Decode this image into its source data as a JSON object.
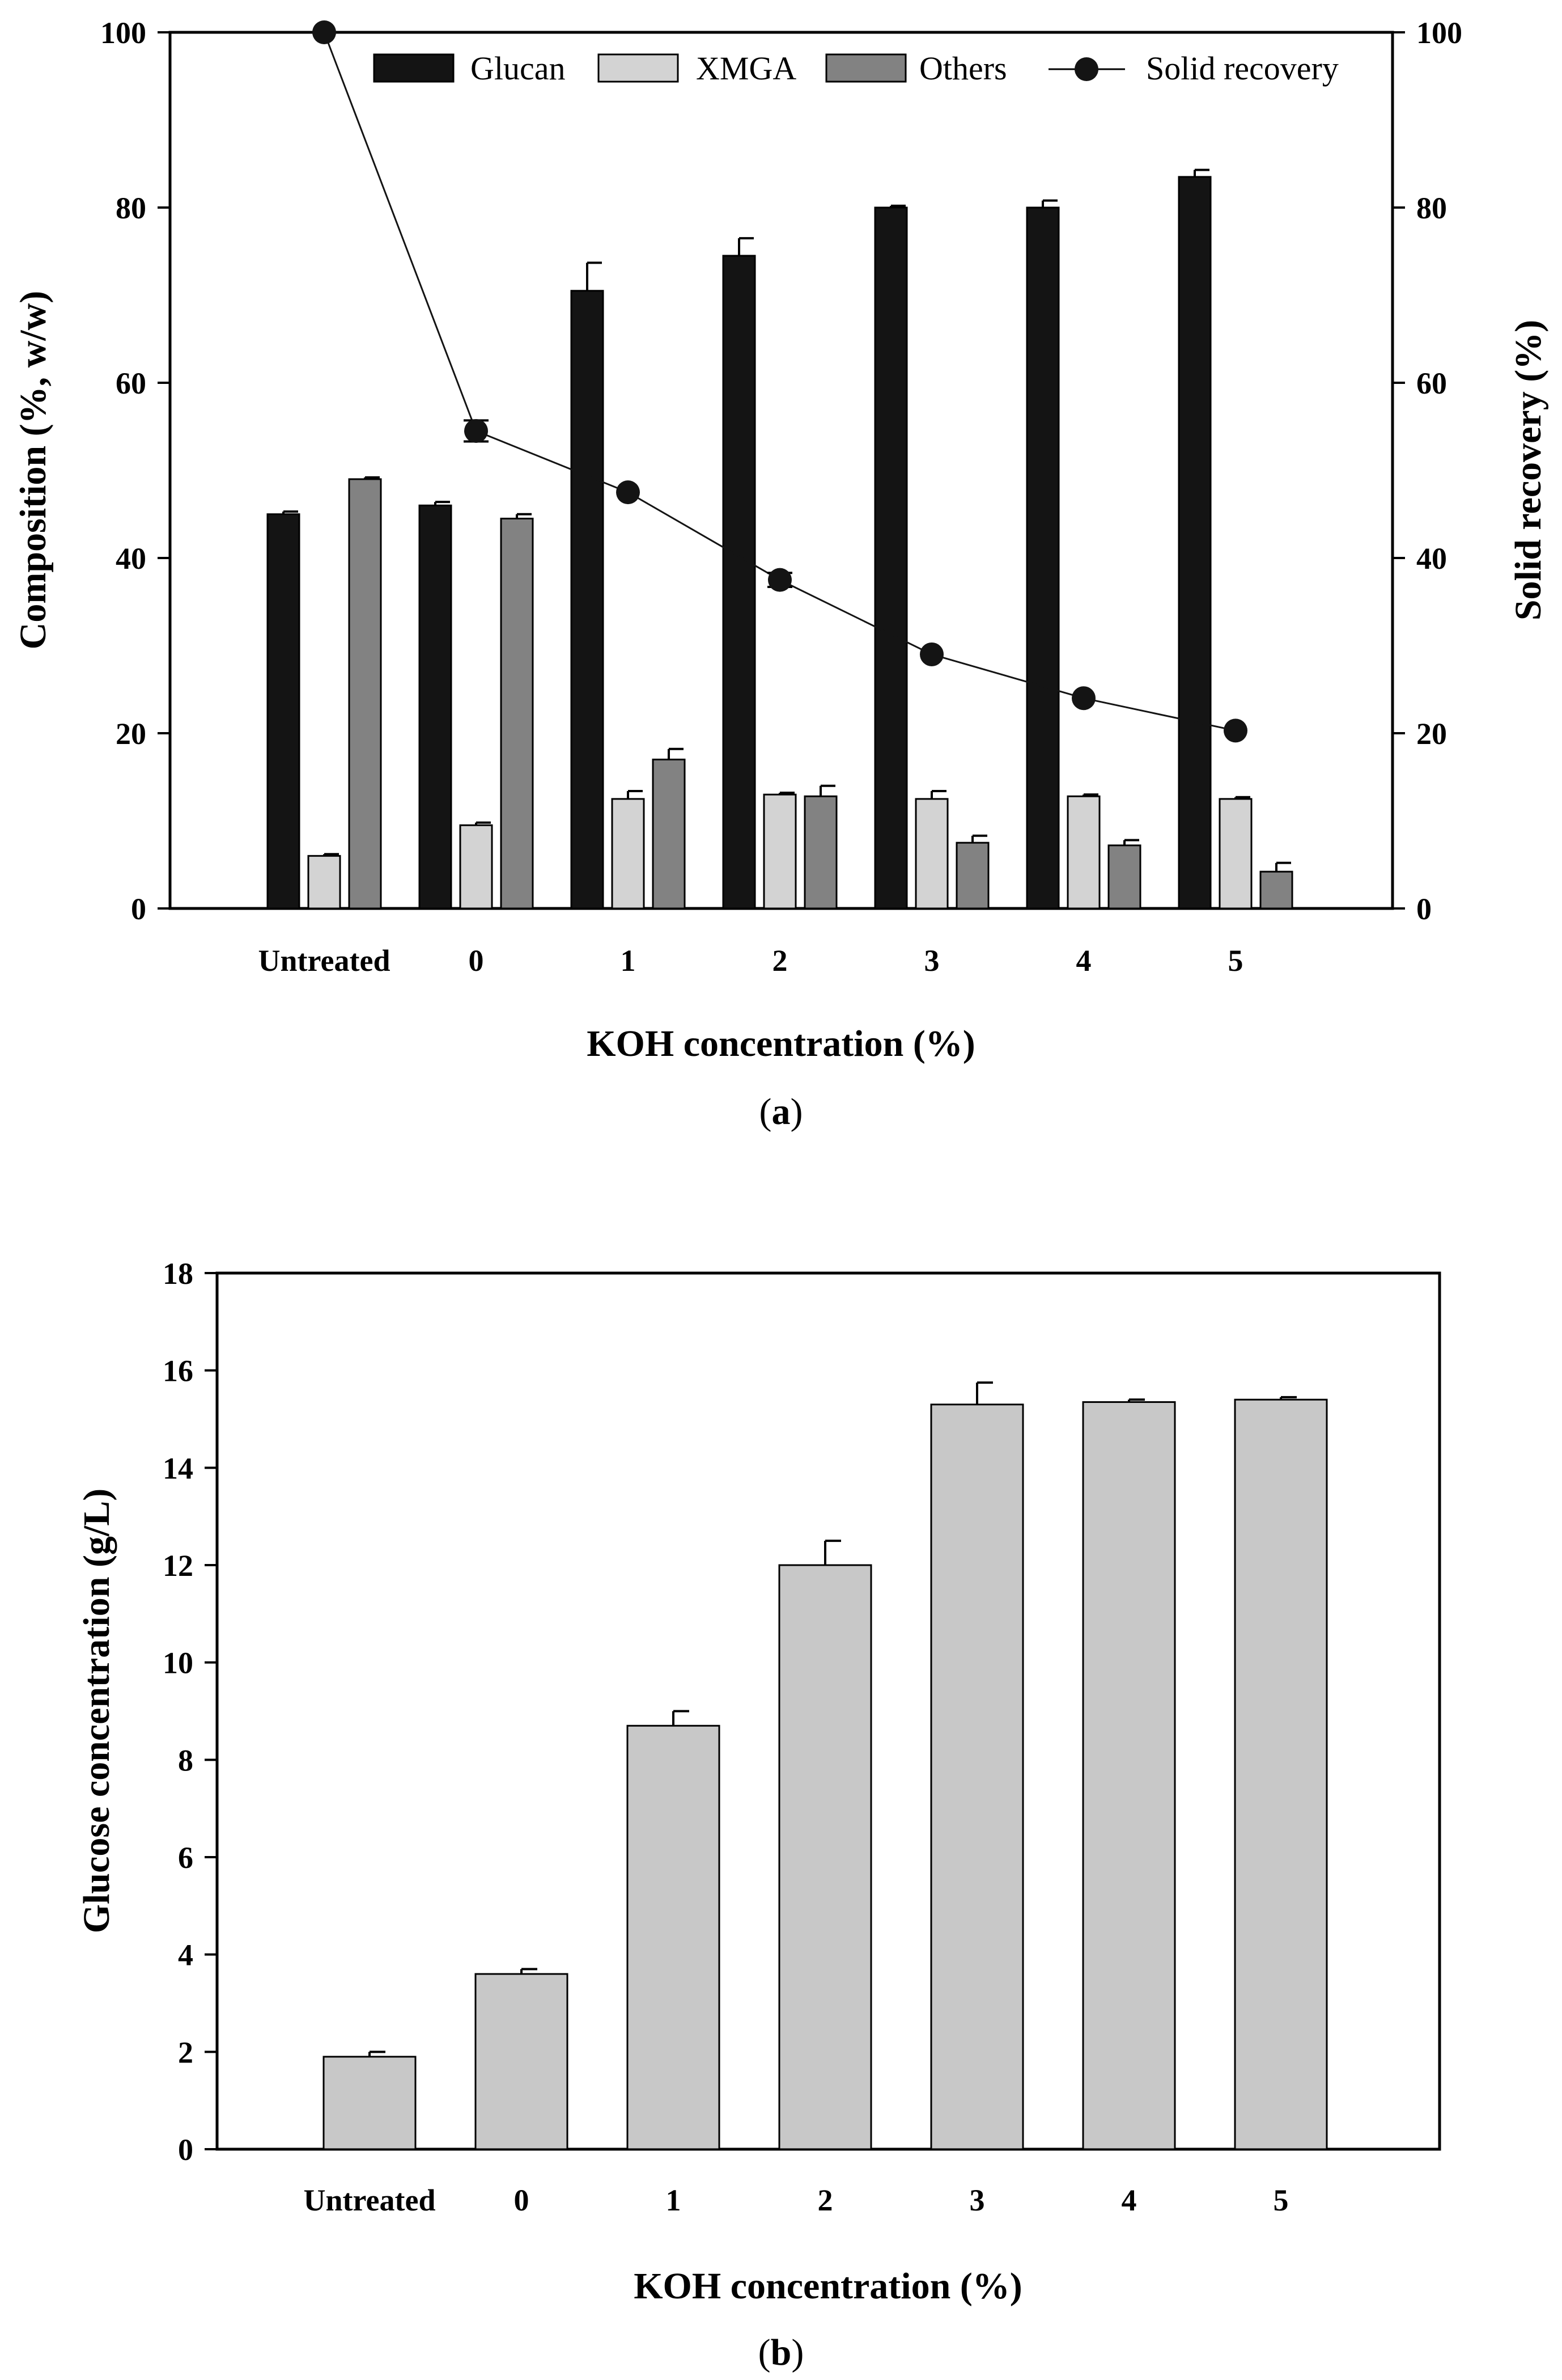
{
  "chart_data": [
    {
      "panel": "a",
      "type": "bar",
      "panel_label": {
        "open": "(",
        "letter": "a",
        "close": ")"
      },
      "categories": [
        "Untreated",
        "0",
        "1",
        "2",
        "3",
        "4",
        "5"
      ],
      "xlabel": "KOH concentration (%)",
      "ylabel": "Composition (%, w/w)",
      "y2label": "Solid recovery (%)",
      "ylim": [
        0,
        100
      ],
      "y2lim": [
        0,
        100
      ],
      "yticks": [
        0,
        20,
        40,
        60,
        80,
        100
      ],
      "y2ticks": [
        0,
        20,
        40,
        60,
        80,
        100
      ],
      "legend_position": "top-right",
      "series": [
        {
          "name": "Glucan",
          "kind": "bar",
          "color": "#141414",
          "values": [
            45.0,
            46.0,
            70.5,
            74.5,
            80.0,
            80.0,
            83.5
          ],
          "errors": [
            0.3,
            0.4,
            3.2,
            2.0,
            0.2,
            0.8,
            0.8
          ]
        },
        {
          "name": "XMGA",
          "kind": "bar",
          "color": "#d3d3d3",
          "values": [
            6.0,
            9.5,
            12.5,
            13.0,
            12.5,
            12.8,
            12.5
          ],
          "errors": [
            0.2,
            0.3,
            0.9,
            0.2,
            0.9,
            0.2,
            0.2
          ]
        },
        {
          "name": "Others",
          "kind": "bar",
          "color": "#828282",
          "values": [
            49.0,
            44.5,
            17.0,
            12.8,
            7.5,
            7.2,
            4.2
          ],
          "errors": [
            0.2,
            0.5,
            1.2,
            1.2,
            0.8,
            0.6,
            1.0
          ]
        },
        {
          "name": "Solid recovery",
          "kind": "line",
          "axis": "right",
          "color": "#141414",
          "values": [
            100,
            54.5,
            47.5,
            37.5,
            29.0,
            24.0,
            20.3
          ],
          "errors": [
            0,
            1.2,
            0,
            0.8,
            0,
            0,
            0
          ]
        }
      ]
    },
    {
      "panel": "b",
      "type": "bar",
      "panel_label": {
        "open": "(",
        "letter": "b",
        "close": ")"
      },
      "categories": [
        "Untreated",
        "0",
        "1",
        "2",
        "3",
        "4",
        "5"
      ],
      "xlabel": "KOH concentration (%)",
      "ylabel": "Glucose concentration (g/L)",
      "ylim": [
        0,
        18
      ],
      "yticks": [
        0,
        2,
        4,
        6,
        8,
        10,
        12,
        14,
        16,
        18
      ],
      "series": [
        {
          "name": "Glucose",
          "kind": "bar",
          "color": "#c8c8c8",
          "values": [
            1.9,
            3.6,
            8.7,
            12.0,
            15.3,
            15.35,
            15.4
          ],
          "errors": [
            0.1,
            0.1,
            0.3,
            0.5,
            0.45,
            0.05,
            0.05
          ]
        }
      ]
    }
  ]
}
